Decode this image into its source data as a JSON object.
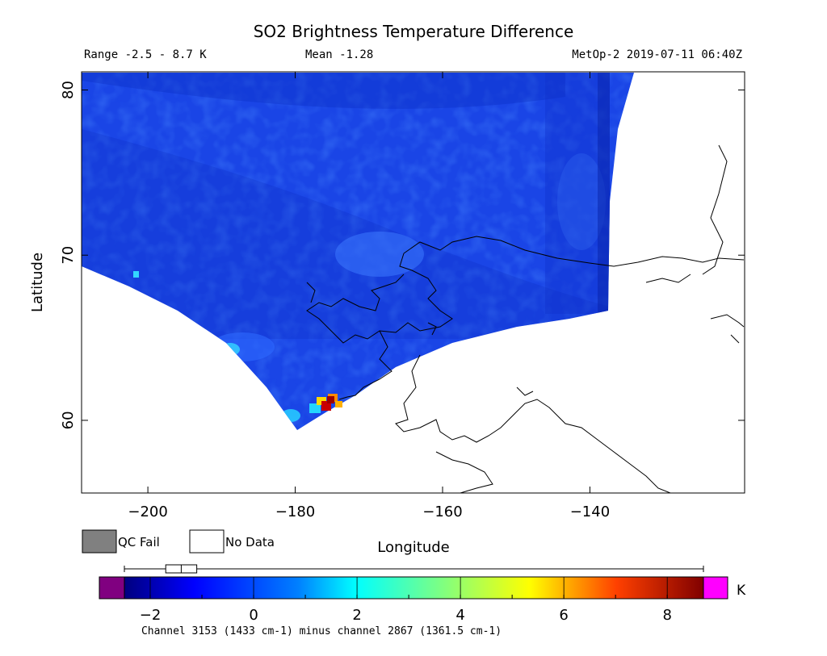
{
  "chart_data": {
    "type": "heatmap",
    "title": "SO2 Brightness Temperature Difference",
    "subtitle_left": "Range -2.5 - 8.7 K",
    "subtitle_center": "Mean -1.28",
    "subtitle_right": "MetOp-2 2019-07-11 06:40Z",
    "xlabel": "Longitude",
    "ylabel": "Latitude",
    "xlim": [
      -209,
      -119
    ],
    "ylim": [
      55.6,
      81.1
    ],
    "xticks": [
      -200,
      -180,
      -160,
      -140
    ],
    "yticks": [
      60,
      70,
      80
    ],
    "legend": [
      {
        "label": "QC Fail",
        "color": "#808080"
      },
      {
        "label": "No Data",
        "color": "#ffffff"
      }
    ],
    "colorbar": {
      "unit": "K",
      "range": [
        -2.5,
        8.7
      ],
      "ticks": [
        -2,
        0,
        2,
        4,
        6,
        8
      ],
      "underflow_color": "#800080",
      "overflow_color": "#ff00ff",
      "box_whisker": {
        "min": -2.5,
        "q1": -1.7,
        "median": -1.4,
        "q3": -1.1,
        "max": 8.7
      }
    },
    "caption": "Channel 3153 (1433 cm-1) minus channel 2867 (1361.5 cm-1)",
    "hotspot": {
      "lon": -177.5,
      "lat": 61.5,
      "peak_value": 8.7
    }
  },
  "colors": {
    "background_field": "#1440e8",
    "plume_hot": "#b00000"
  }
}
